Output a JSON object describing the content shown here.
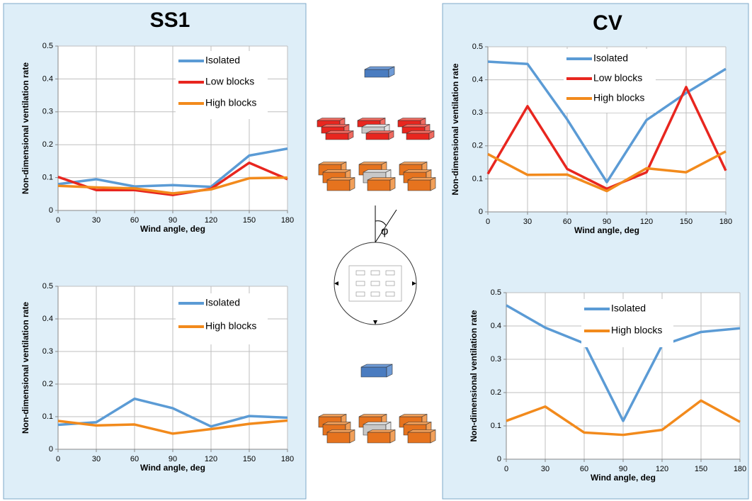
{
  "panel_titles": [
    "SS1",
    "CV"
  ],
  "diagram": {
    "angle_label": "φ"
  },
  "chart_data": [
    {
      "type": "line",
      "xlabel": "Wind angle, deg",
      "ylabel": "Non-dimensional ventilation rate",
      "x": [
        0,
        30,
        60,
        90,
        120,
        150,
        180
      ],
      "xlim": [
        0,
        180
      ],
      "xticks": [
        0,
        30,
        60,
        90,
        120,
        150,
        180
      ],
      "ylim": [
        0,
        0.5
      ],
      "yticks": [
        0,
        0.1,
        0.2,
        0.3,
        0.4,
        0.5
      ],
      "grid": true,
      "legend": "upper right",
      "series": [
        {
          "name": "Isolated",
          "color": "#5b9bd5",
          "values": [
            0.08,
            0.095,
            0.073,
            0.077,
            0.072,
            0.167,
            0.188
          ]
        },
        {
          "name": "Low blocks",
          "color": "#e8261f",
          "values": [
            0.102,
            0.062,
            0.062,
            0.047,
            0.066,
            0.145,
            0.095
          ]
        },
        {
          "name": "High blocks",
          "color": "#f28a1c",
          "values": [
            0.075,
            0.07,
            0.067,
            0.052,
            0.064,
            0.098,
            0.1
          ]
        }
      ]
    },
    {
      "type": "line",
      "xlabel": "Wind angle, deg",
      "ylabel": "Non-dimensional ventilation rate",
      "x": [
        0,
        30,
        60,
        90,
        120,
        150,
        180
      ],
      "xlim": [
        0,
        180
      ],
      "xticks": [
        0,
        30,
        60,
        90,
        120,
        150,
        180
      ],
      "ylim": [
        0,
        0.5
      ],
      "yticks": [
        0,
        0.1,
        0.2,
        0.3,
        0.4,
        0.5
      ],
      "grid": true,
      "legend": "upper right",
      "series": [
        {
          "name": "Isolated",
          "color": "#5b9bd5",
          "values": [
            0.075,
            0.083,
            0.155,
            0.126,
            0.07,
            0.102,
            0.097
          ]
        },
        {
          "name": "High blocks",
          "color": "#f28a1c",
          "values": [
            0.087,
            0.073,
            0.076,
            0.048,
            0.062,
            0.078,
            0.088
          ]
        }
      ]
    },
    {
      "type": "line",
      "xlabel": "Wind angle, deg",
      "ylabel": "Non-dimensional ventilation rate",
      "x": [
        0,
        30,
        60,
        90,
        120,
        150,
        180
      ],
      "xlim": [
        0,
        180
      ],
      "xticks": [
        0,
        30,
        60,
        90,
        120,
        150,
        180
      ],
      "ylim": [
        0,
        0.5
      ],
      "yticks": [
        0,
        0.1,
        0.2,
        0.3,
        0.4,
        0.5
      ],
      "grid": true,
      "legend": "upper center",
      "series": [
        {
          "name": "Isolated",
          "color": "#5b9bd5",
          "values": [
            0.455,
            0.448,
            0.28,
            0.09,
            0.278,
            0.36,
            0.433
          ]
        },
        {
          "name": "Low blocks",
          "color": "#e8261f",
          "values": [
            0.115,
            0.32,
            0.13,
            0.07,
            0.12,
            0.378,
            0.125
          ]
        },
        {
          "name": "High blocks",
          "color": "#f28a1c",
          "values": [
            0.175,
            0.112,
            0.113,
            0.063,
            0.132,
            0.12,
            0.183
          ]
        }
      ]
    },
    {
      "type": "line",
      "xlabel": "Wind angle, deg",
      "ylabel": "Non-dimensional ventilation rate",
      "x": [
        0,
        30,
        60,
        90,
        120,
        150,
        180
      ],
      "xlim": [
        0,
        180
      ],
      "xticks": [
        0,
        30,
        60,
        90,
        120,
        150,
        180
      ],
      "ylim": [
        0,
        0.5
      ],
      "yticks": [
        0,
        0.1,
        0.2,
        0.3,
        0.4,
        0.5
      ],
      "grid": true,
      "legend": "upper center",
      "series": [
        {
          "name": "Isolated",
          "color": "#5b9bd5",
          "values": [
            0.462,
            0.395,
            0.348,
            0.115,
            0.342,
            0.382,
            0.393
          ]
        },
        {
          "name": "High blocks",
          "color": "#f28a1c",
          "values": [
            0.115,
            0.158,
            0.08,
            0.073,
            0.088,
            0.176,
            0.112
          ]
        }
      ]
    }
  ]
}
